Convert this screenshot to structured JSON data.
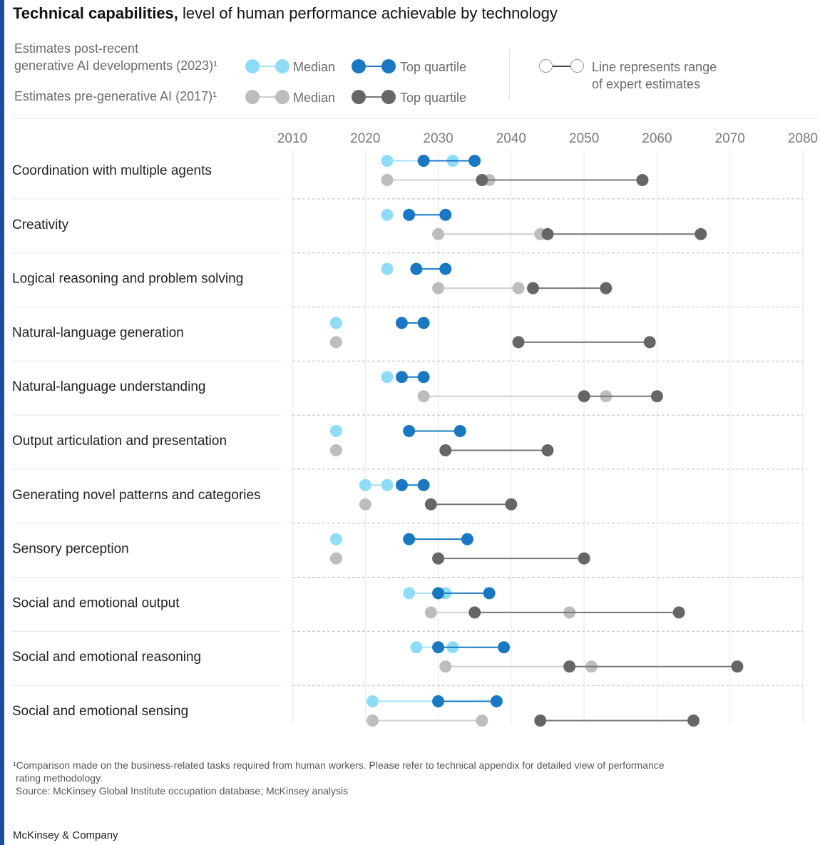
{
  "title": {
    "bold": "Technical capabilities,",
    "rest": " level of human performance achievable by technology"
  },
  "legend": {
    "post_label_line1": "Estimates post-recent",
    "post_label_line2": "generative AI developments (2023)¹",
    "pre_label": "Estimates pre-generative AI (2017)¹",
    "median": "Median",
    "top_quartile": "Top quartile",
    "range_line1": "Line represents range",
    "range_line2": "of expert estimates"
  },
  "colors": {
    "post_median": "#8fdcf9",
    "post_top": "#1a78c2",
    "pre_median": "#bdbdbd",
    "pre_top": "#666666",
    "post_line_light": "#a6e2f8",
    "post_line_dark": "#1a78c2",
    "pre_line_light": "#cfcfcf",
    "pre_line_dark": "#777777"
  },
  "chart_data": {
    "type": "scatter",
    "x_ticks": [
      2010,
      2020,
      2030,
      2040,
      2050,
      2060,
      2070,
      2080
    ],
    "xlim": [
      2010,
      2080
    ],
    "grid": "vertical",
    "categories": [
      "Coordination with multiple agents",
      "Creativity",
      "Logical reasoning and problem solving",
      "Natural-language generation",
      "Natural-language understanding",
      "Output articulation and presentation",
      "Generating novel patterns and categories",
      "Sensory perception",
      "Social and emotional output",
      "Social and emotional reasoning",
      "Social and emotional sensing"
    ],
    "series": [
      {
        "name": "Estimates post-recent generative AI developments (2023) – Median",
        "values": [
          [
            2023,
            2032
          ],
          [
            2023,
            2023
          ],
          [
            2023,
            2023
          ],
          [
            2016,
            2016
          ],
          [
            2023,
            2023
          ],
          [
            2016,
            2016
          ],
          [
            2020,
            2023
          ],
          [
            2016,
            2016
          ],
          [
            2026,
            2031
          ],
          [
            2027,
            2032
          ],
          [
            2021,
            2030
          ]
        ]
      },
      {
        "name": "Estimates post-recent generative AI developments (2023) – Top quartile",
        "values": [
          [
            2028,
            2035
          ],
          [
            2026,
            2031
          ],
          [
            2027,
            2031
          ],
          [
            2025,
            2028
          ],
          [
            2025,
            2028
          ],
          [
            2026,
            2033
          ],
          [
            2025,
            2028
          ],
          [
            2026,
            2034
          ],
          [
            2030,
            2037
          ],
          [
            2030,
            2039
          ],
          [
            2030,
            2038
          ]
        ]
      },
      {
        "name": "Estimates pre-generative AI (2017) – Median",
        "values": [
          [
            2023,
            2037
          ],
          [
            2030,
            2044
          ],
          [
            2030,
            2041
          ],
          [
            2016,
            2016
          ],
          [
            2028,
            2053
          ],
          [
            2016,
            2016
          ],
          [
            2020,
            2020
          ],
          [
            2016,
            2016
          ],
          [
            2029,
            2048
          ],
          [
            2031,
            2051
          ],
          [
            2021,
            2036
          ]
        ]
      },
      {
        "name": "Estimates pre-generative AI (2017) – Top quartile",
        "values": [
          [
            2036,
            2058
          ],
          [
            2045,
            2066
          ],
          [
            2043,
            2053
          ],
          [
            2041,
            2059
          ],
          [
            2050,
            2060
          ],
          [
            2031,
            2045
          ],
          [
            2029,
            2040
          ],
          [
            2030,
            2050
          ],
          [
            2035,
            2063
          ],
          [
            2048,
            2071
          ],
          [
            2044,
            2065
          ]
        ]
      }
    ]
  },
  "footnote": {
    "line1": "¹Comparison made on the business-related tasks required from human workers. Please refer to technical appendix for detailed view of performance",
    "line2": "rating methodology.",
    "line3": "Source: McKinsey Global Institute occupation database; McKinsey analysis"
  },
  "brand": "McKinsey & Company"
}
